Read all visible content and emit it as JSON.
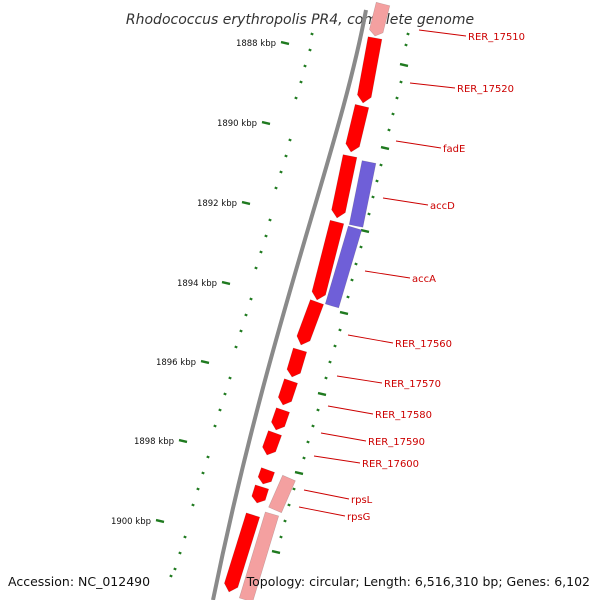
{
  "title": "Rhodococcus erythropolis PR4, complete genome",
  "footer": {
    "accession": "Accession: NC_012490",
    "topology": "Topology: circular; Length: 6,516,310 bp; Genes: 6,102"
  },
  "colors": {
    "backbone": "#7a7a7a",
    "forward_gene": "#ff0000",
    "faded_gene": "#f4a0a0",
    "blue_gene": "#6f5fd8",
    "tick": "#1f7a1f",
    "label": "#cc0000"
  },
  "scale": {
    "labels": [
      "1888 kbp",
      "1890 kbp",
      "1892 kbp",
      "1894 kbp",
      "1896 kbp",
      "1898 kbp",
      "1900 kbp"
    ]
  },
  "genes": [
    {
      "label": "RER_17510"
    },
    {
      "label": "RER_17520"
    },
    {
      "label": "fadE"
    },
    {
      "label": "accD"
    },
    {
      "label": "accA"
    },
    {
      "label": "RER_17560"
    },
    {
      "label": "RER_17570"
    },
    {
      "label": "RER_17580"
    },
    {
      "label": "RER_17590"
    },
    {
      "label": "RER_17600"
    },
    {
      "label": "rpsL"
    },
    {
      "label": "rpsG"
    }
  ]
}
